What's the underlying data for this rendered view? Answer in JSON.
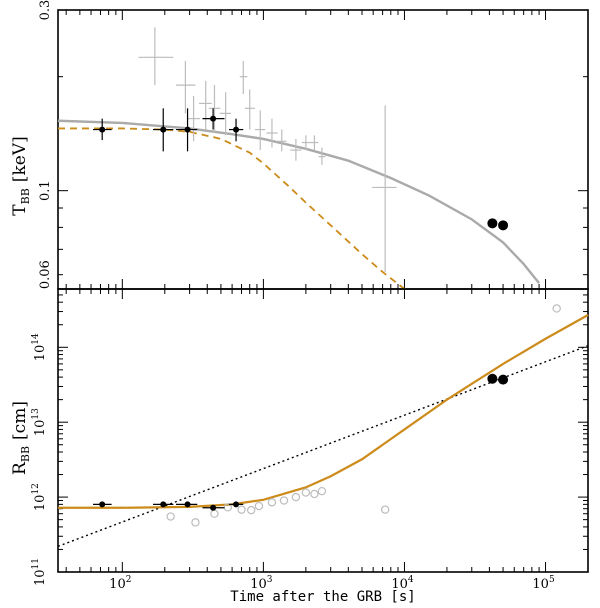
{
  "chart_data": [
    {
      "type": "scatter",
      "name": "top-panel-temperature",
      "ylabel_main": "T",
      "ylabel_sub": "BB",
      "ylabel_unit": "[keV]",
      "xscale": "log",
      "yscale": "log",
      "xlim": [
        35,
        200000
      ],
      "ylim": [
        0.055,
        0.3
      ],
      "yticks": [
        {
          "value": 0.3,
          "label": "0.3"
        },
        {
          "value": 0.1,
          "label": "0.1"
        },
        {
          "value": 0.06,
          "label": "0.06"
        }
      ],
      "grey_points": [
        {
          "x": 170,
          "y": 0.225,
          "xerr": [
            130,
            230
          ],
          "yerr": [
            0.19,
            0.27
          ]
        },
        {
          "x": 280,
          "y": 0.19,
          "xerr": [
            240,
            330
          ],
          "yerr": [
            0.16,
            0.22
          ]
        },
        {
          "x": 320,
          "y": 0.155,
          "xerr": [
            290,
            355
          ],
          "yerr": [
            0.135,
            0.178
          ]
        },
        {
          "x": 390,
          "y": 0.17,
          "xerr": [
            350,
            430
          ],
          "yerr": [
            0.145,
            0.195
          ]
        },
        {
          "x": 450,
          "y": 0.165,
          "xerr": [
            410,
            495
          ],
          "yerr": [
            0.142,
            0.19
          ]
        },
        {
          "x": 540,
          "y": 0.16,
          "xerr": [
            490,
            590
          ],
          "yerr": [
            0.14,
            0.182
          ]
        },
        {
          "x": 720,
          "y": 0.2,
          "xerr": [
            680,
            770
          ],
          "yerr": [
            0.18,
            0.22
          ]
        },
        {
          "x": 800,
          "y": 0.165,
          "xerr": [
            740,
            870
          ],
          "yerr": [
            0.145,
            0.185
          ]
        },
        {
          "x": 950,
          "y": 0.145,
          "xerr": [
            870,
            1030
          ],
          "yerr": [
            0.128,
            0.163
          ]
        },
        {
          "x": 1150,
          "y": 0.142,
          "xerr": [
            1050,
            1260
          ],
          "yerr": [
            0.13,
            0.155
          ]
        },
        {
          "x": 1350,
          "y": 0.135,
          "xerr": [
            1250,
            1460
          ],
          "yerr": [
            0.127,
            0.145
          ]
        },
        {
          "x": 1700,
          "y": 0.128,
          "xerr": [
            1550,
            1860
          ],
          "yerr": [
            0.12,
            0.137
          ]
        },
        {
          "x": 2000,
          "y": 0.134,
          "xerr": [
            1870,
            2150
          ],
          "yerr": [
            0.128,
            0.14
          ]
        },
        {
          "x": 2300,
          "y": 0.134,
          "xerr": [
            2150,
            2450
          ],
          "yerr": [
            0.128,
            0.14
          ]
        },
        {
          "x": 2600,
          "y": 0.123,
          "xerr": [
            2460,
            2750
          ],
          "yerr": [
            0.117,
            0.13
          ]
        },
        {
          "x": 7300,
          "y": 0.102,
          "xerr": [
            5900,
            8800
          ],
          "yerr": [
            0.061,
            0.168
          ]
        }
      ],
      "black_points": [
        {
          "x": 72,
          "y": 0.145,
          "xerr": [
            62,
            84
          ],
          "yerr": [
            0.136,
            0.155
          ]
        },
        {
          "x": 195,
          "y": 0.145,
          "xerr": [
            165,
            230
          ],
          "yerr": [
            0.127,
            0.165
          ]
        },
        {
          "x": 290,
          "y": 0.145,
          "xerr": [
            240,
            340
          ],
          "yerr": [
            0.127,
            0.165
          ]
        },
        {
          "x": 440,
          "y": 0.155,
          "xerr": [
            370,
            530
          ],
          "yerr": [
            0.145,
            0.165
          ]
        },
        {
          "x": 640,
          "y": 0.145,
          "xerr": [
            570,
            720
          ],
          "yerr": [
            0.135,
            0.155
          ]
        }
      ],
      "big_points": [
        {
          "x": 42000,
          "y": 0.082
        },
        {
          "x": 50000,
          "y": 0.081
        }
      ],
      "grey_curve": {
        "x": [
          35,
          100,
          300,
          600,
          1000,
          2000,
          4000,
          8000,
          15000,
          30000,
          50000,
          70000,
          90000
        ],
        "y": [
          0.153,
          0.151,
          0.146,
          0.141,
          0.137,
          0.129,
          0.12,
          0.108,
          0.097,
          0.084,
          0.073,
          0.064,
          0.057
        ]
      },
      "orange_curve": {
        "x": [
          35,
          100,
          200,
          300,
          500,
          800,
          1000,
          1500,
          2000,
          3000,
          5000,
          7000,
          10000
        ],
        "y": [
          0.146,
          0.146,
          0.145,
          0.143,
          0.137,
          0.126,
          0.118,
          0.103,
          0.093,
          0.081,
          0.068,
          0.061,
          0.055
        ]
      }
    },
    {
      "type": "scatter",
      "name": "bottom-panel-radius",
      "ylabel_main": "R",
      "ylabel_sub": "BB",
      "ylabel_unit": "[cm]",
      "xlabel": "Time after the GRB [s]",
      "xscale": "log",
      "yscale": "log",
      "xlim": [
        35,
        200000
      ],
      "ylim": [
        100000000000,
        600000000000000
      ],
      "xticks": [
        {
          "value": 100,
          "base": "10",
          "exp": "2"
        },
        {
          "value": 1000,
          "base": "10",
          "exp": "3"
        },
        {
          "value": 10000,
          "base": "10",
          "exp": "4"
        },
        {
          "value": 100000,
          "base": "10",
          "exp": "5"
        }
      ],
      "yticks": [
        {
          "value": 100000000000,
          "base": "10",
          "exp": "11"
        },
        {
          "value": 1000000000000,
          "base": "10",
          "exp": "12"
        },
        {
          "value": 10000000000000,
          "base": "10",
          "exp": "13"
        },
        {
          "value": 100000000000000,
          "base": "10",
          "exp": "14"
        }
      ],
      "open_points": [
        {
          "x": 220,
          "y": 550000000000
        },
        {
          "x": 330,
          "y": 460000000000
        },
        {
          "x": 450,
          "y": 600000000000
        },
        {
          "x": 560,
          "y": 730000000000
        },
        {
          "x": 700,
          "y": 680000000000
        },
        {
          "x": 820,
          "y": 670000000000
        },
        {
          "x": 930,
          "y": 760000000000
        },
        {
          "x": 1150,
          "y": 850000000000
        },
        {
          "x": 1400,
          "y": 900000000000
        },
        {
          "x": 1700,
          "y": 1000000000000
        },
        {
          "x": 2000,
          "y": 1150000000000
        },
        {
          "x": 2300,
          "y": 1100000000000
        },
        {
          "x": 2600,
          "y": 1200000000000
        },
        {
          "x": 7300,
          "y": 680000000000
        },
        {
          "x": 120000,
          "y": 330000000000000
        }
      ],
      "black_points": [
        {
          "x": 72,
          "y": 800000000000,
          "xerr": [
            62,
            84
          ]
        },
        {
          "x": 195,
          "y": 800000000000,
          "xerr": [
            165,
            230
          ]
        },
        {
          "x": 290,
          "y": 800000000000,
          "xerr": [
            240,
            340
          ]
        },
        {
          "x": 440,
          "y": 720000000000,
          "xerr": [
            370,
            530
          ]
        },
        {
          "x": 640,
          "y": 800000000000,
          "xerr": [
            570,
            720
          ]
        }
      ],
      "big_points": [
        {
          "x": 42000,
          "y": 38000000000000
        },
        {
          "x": 50000,
          "y": 37000000000000
        }
      ],
      "orange_curve": {
        "x": [
          35,
          100,
          300,
          600,
          1000,
          2000,
          3000,
          5000,
          10000,
          20000,
          50000,
          100000,
          200000
        ],
        "y": [
          720000000000,
          720000000000,
          740000000000,
          800000000000,
          920000000000,
          1350000000000,
          1900000000000,
          3200000000000,
          8000000000000,
          20000000000000,
          60000000000000,
          130000000000000,
          270000000000000
        ]
      },
      "dotted_curve": {
        "x": [
          35,
          200000
        ],
        "y": [
          220000000000,
          105000000000000
        ]
      }
    }
  ]
}
